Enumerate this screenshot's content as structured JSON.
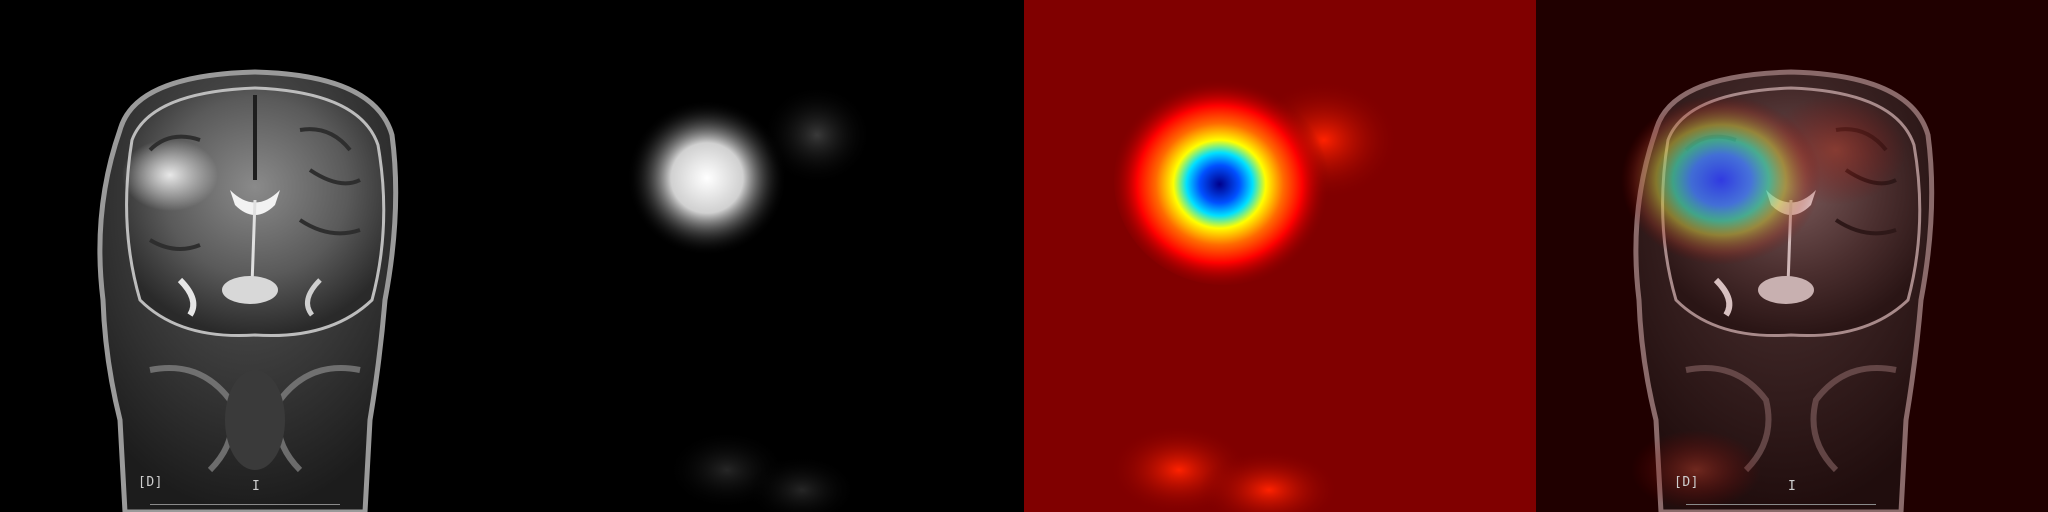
{
  "panels": [
    {
      "id": "mri",
      "annotations": {
        "left": "[D]",
        "bottom": "I"
      }
    },
    {
      "id": "attention-map-grayscale"
    },
    {
      "id": "attention-map-jet"
    },
    {
      "id": "overlay",
      "annotations": {
        "left": "[D]",
        "bottom": "I"
      }
    }
  ],
  "colors": {
    "background": "#000000",
    "jet_base": "#800000",
    "jet_peak": "#00008b"
  }
}
